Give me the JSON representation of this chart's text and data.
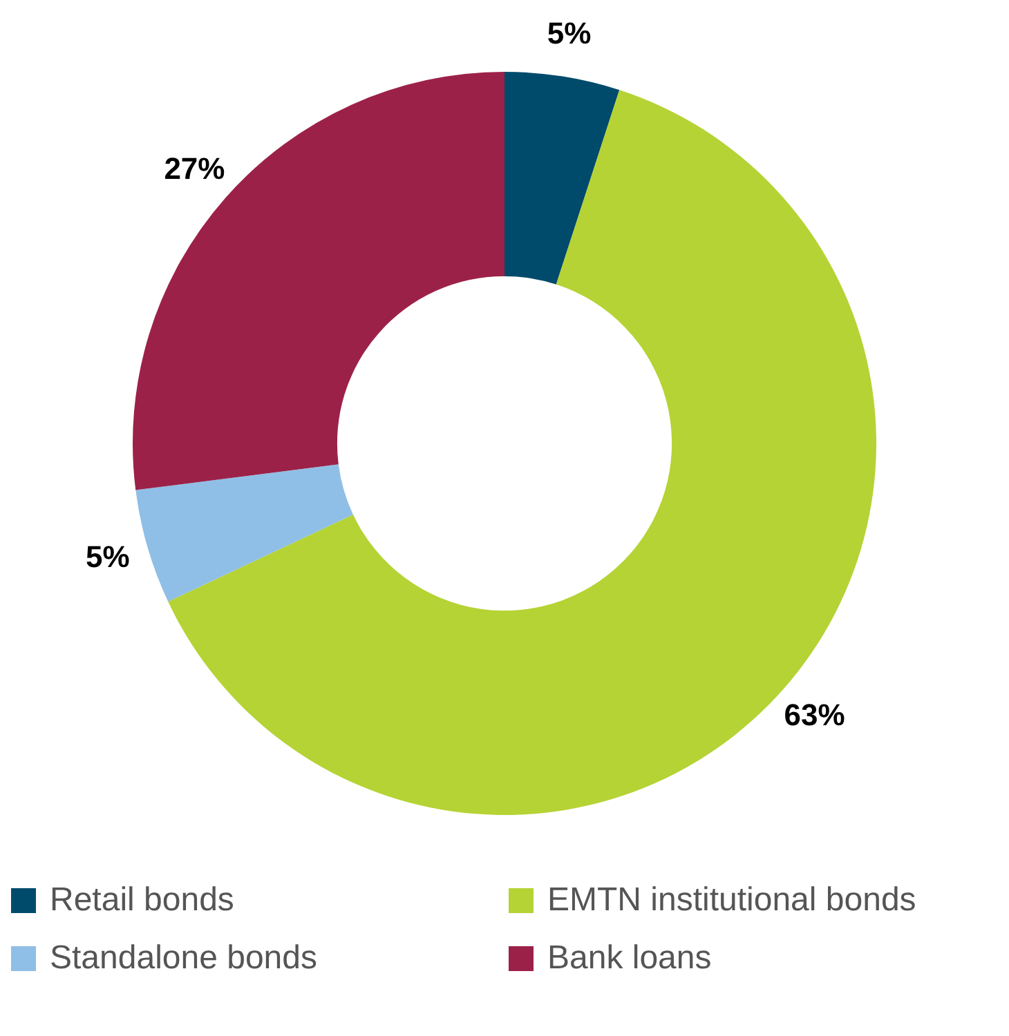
{
  "chart_data": {
    "type": "donut",
    "categories": [
      "Retail bonds",
      "EMTN institutional bonds",
      "Standalone bonds",
      "Bank loans"
    ],
    "values": [
      5,
      63,
      5,
      27
    ],
    "colors": [
      "#004b6b",
      "#b5d334",
      "#8fbfe6",
      "#9c2148"
    ],
    "value_labels": [
      "5%",
      "63%",
      "5%",
      "27%"
    ],
    "legend": "bottom"
  }
}
